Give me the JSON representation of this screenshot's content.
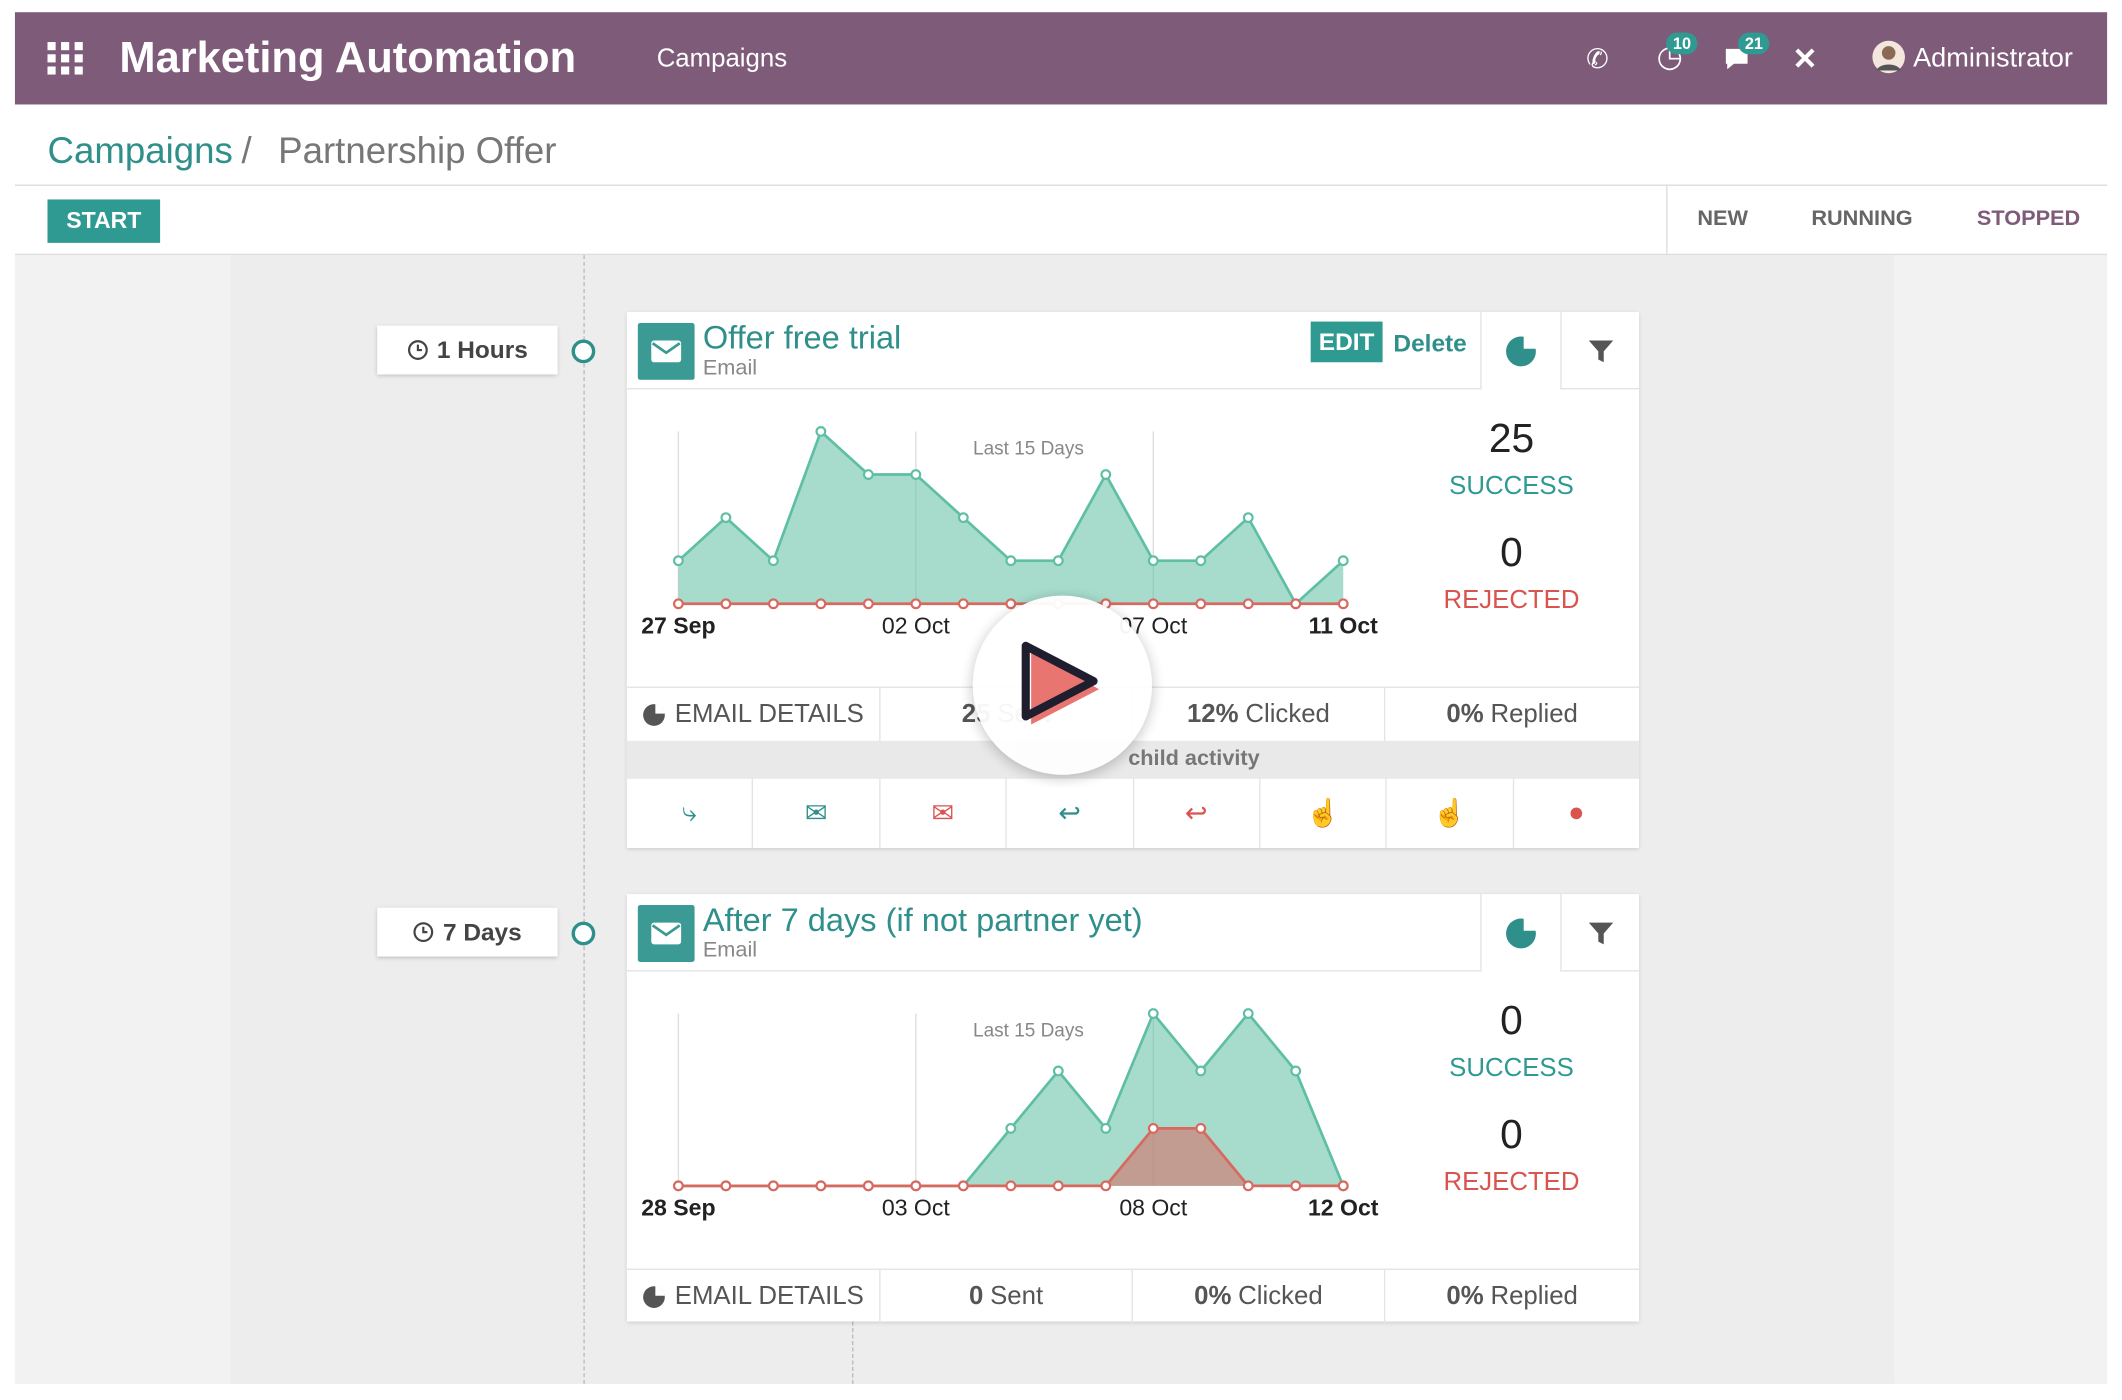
{
  "navbar": {
    "app": "Marketing Automation",
    "menu": "Campaigns",
    "badges": [
      10,
      21
    ],
    "user": "Administrator"
  },
  "breadcrumb": {
    "parent": "Campaigns",
    "separator": "/",
    "current": "Partnership Offer"
  },
  "actions": {
    "start": "START"
  },
  "statusbar": [
    "NEW",
    "RUNNING",
    "STOPPED"
  ],
  "activities": [
    {
      "trigger": "1 Hours",
      "title": "Offer free trial",
      "type": "Email",
      "buttons": [
        "EDIT",
        "Delete"
      ],
      "chart_data": {
        "type": "area",
        "title": "Last 15 Days",
        "categories": [
          "27 Sep",
          null,
          null,
          null,
          null,
          "02 Oct",
          null,
          null,
          null,
          null,
          "07 Oct",
          null,
          null,
          null,
          "11 Oct"
        ],
        "ylim": [
          0,
          4
        ],
        "series": [
          {
            "color": "#5fbfa4",
            "values": [
              1,
              2,
              1,
              4,
              3,
              3,
              2,
              1,
              1,
              3,
              1,
              1,
              2,
              0,
              1
            ]
          },
          {
            "color": "#d9685f",
            "values": [
              0,
              0,
              0,
              0,
              0,
              0,
              0,
              0,
              0,
              0,
              0,
              0,
              0,
              0,
              0
            ]
          }
        ]
      },
      "stats": [
        {
          "value": 25,
          "label": "SUCCESS"
        },
        {
          "value": 0,
          "label": "REJECTED"
        }
      ],
      "details": {
        "label": "EMAIL DETAILS",
        "items": [
          {
            "value": "25",
            "label": "Sent"
          },
          {
            "value": "12%",
            "label": "Clicked"
          },
          {
            "value": "0%",
            "label": "Replied"
          }
        ]
      },
      "child_activity": "child activity"
    },
    {
      "trigger": "7 Days",
      "title": "After 7 days (if not partner yet)",
      "type": "Email",
      "chart_data": {
        "type": "area",
        "title": "Last 15 Days",
        "categories": [
          "28 Sep",
          null,
          null,
          null,
          null,
          "03 Oct",
          null,
          null,
          null,
          null,
          "08 Oct",
          null,
          null,
          null,
          "12 Oct"
        ],
        "ylim": [
          0,
          3
        ],
        "series": [
          {
            "color": "#5fbfa4",
            "values": [
              0,
              0,
              0,
              0,
              0,
              0,
              0,
              1,
              2,
              1,
              3,
              2,
              3,
              2,
              0
            ]
          },
          {
            "color": "#d9685f",
            "values": [
              0,
              0,
              0,
              0,
              0,
              0,
              0,
              0,
              0,
              0,
              1,
              1,
              0,
              0,
              0
            ]
          }
        ]
      },
      "stats": [
        {
          "value": 0,
          "label": "SUCCESS"
        },
        {
          "value": 0,
          "label": "REJECTED"
        }
      ],
      "details": {
        "label": "EMAIL DETAILS",
        "items": [
          {
            "value": "0",
            "label": "Sent"
          },
          {
            "value": "0%",
            "label": "Clicked"
          },
          {
            "value": "0%",
            "label": "Replied"
          }
        ]
      }
    }
  ]
}
